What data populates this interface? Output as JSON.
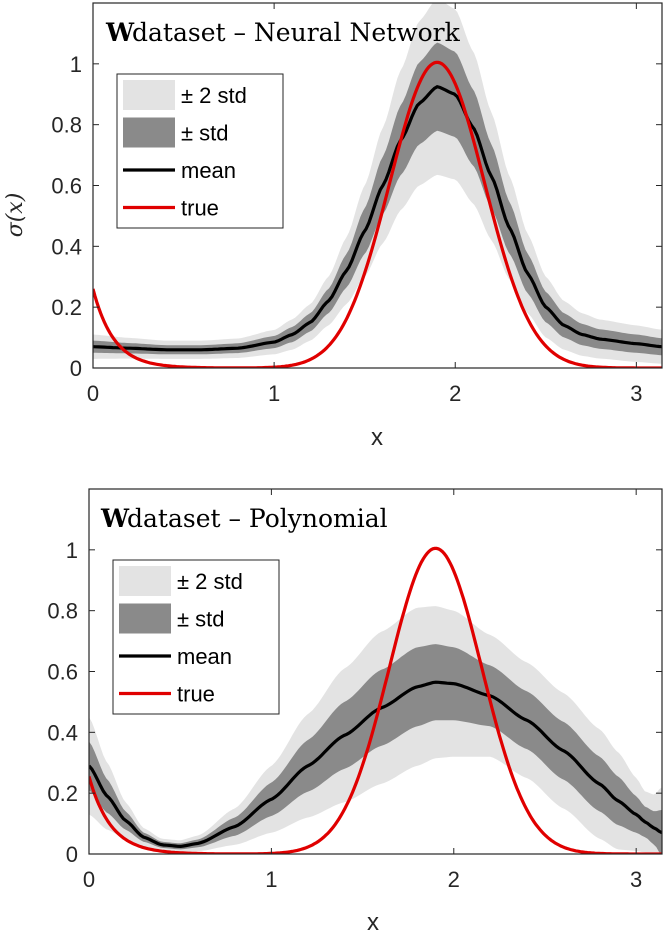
{
  "chart_data": [
    {
      "type": "line",
      "title_bold": "W",
      "title_rest": " dataset – Neural Network",
      "xlabel": "x",
      "ylabel": "σ(x)",
      "xlim": [
        0,
        3.1416
      ],
      "ylim": [
        0,
        1.2
      ],
      "xticks": [
        0,
        1,
        2,
        3
      ],
      "yticks": [
        0,
        0.2,
        0.4,
        0.6,
        0.8,
        1
      ],
      "xtick_labels": [
        "0",
        "1",
        "2",
        "3"
      ],
      "ytick_labels": [
        "0",
        "0.2",
        "0.4",
        "0.6",
        "0.8",
        "1"
      ],
      "legend": {
        "position": "upper-left",
        "entries": [
          {
            "label": "± 2 std",
            "kind": "band2"
          },
          {
            "label": "± std",
            "kind": "band1"
          },
          {
            "label": "mean",
            "kind": "mean"
          },
          {
            "label": "true",
            "kind": "true"
          }
        ]
      },
      "colors": {
        "band2": "#e3e3e3",
        "band1": "#8a8a8a",
        "mean": "#000000",
        "true": "#e00000"
      },
      "model": {
        "x": [
          0,
          0.2,
          0.4,
          0.6,
          0.8,
          1.0,
          1.1,
          1.2,
          1.3,
          1.4,
          1.5,
          1.6,
          1.7,
          1.8,
          1.9,
          2.0,
          2.1,
          2.2,
          2.3,
          2.4,
          2.5,
          2.6,
          2.7,
          2.8,
          3.0,
          3.14
        ],
        "mean": [
          0.07,
          0.065,
          0.06,
          0.06,
          0.065,
          0.085,
          0.11,
          0.15,
          0.22,
          0.32,
          0.45,
          0.6,
          0.75,
          0.87,
          0.925,
          0.9,
          0.79,
          0.63,
          0.46,
          0.31,
          0.2,
          0.14,
          0.11,
          0.095,
          0.08,
          0.07
        ],
        "std": [
          0.02,
          0.017,
          0.015,
          0.015,
          0.016,
          0.02,
          0.025,
          0.03,
          0.04,
          0.055,
          0.075,
          0.095,
          0.115,
          0.135,
          0.145,
          0.14,
          0.125,
          0.105,
          0.085,
          0.065,
          0.05,
          0.04,
          0.035,
          0.032,
          0.03,
          0.028
        ]
      },
      "truth": {
        "kind": "nn",
        "note": "true sigma(x)"
      }
    },
    {
      "type": "line",
      "title_bold": "W",
      "title_rest": " dataset – Polynomial",
      "xlabel": "x",
      "ylabel": "",
      "xlim": [
        0,
        3.1416
      ],
      "ylim": [
        0,
        1.2
      ],
      "xticks": [
        0,
        1,
        2,
        3
      ],
      "yticks": [
        0,
        0.2,
        0.4,
        0.6,
        0.8,
        1
      ],
      "xtick_labels": [
        "0",
        "1",
        "2",
        "3"
      ],
      "ytick_labels": [
        "0",
        "0.2",
        "0.4",
        "0.6",
        "0.8",
        "1"
      ],
      "legend": {
        "position": "upper-left",
        "entries": [
          {
            "label": "± 2 std",
            "kind": "band2"
          },
          {
            "label": "± std",
            "kind": "band1"
          },
          {
            "label": "mean",
            "kind": "mean"
          },
          {
            "label": "true",
            "kind": "true"
          }
        ]
      },
      "colors": {
        "band2": "#e3e3e3",
        "band1": "#8a8a8a",
        "mean": "#000000",
        "true": "#e00000"
      },
      "model": {
        "x": [
          0,
          0.1,
          0.2,
          0.3,
          0.4,
          0.5,
          0.6,
          0.8,
          1.0,
          1.2,
          1.4,
          1.6,
          1.8,
          1.9,
          2.0,
          2.2,
          2.4,
          2.6,
          2.8,
          2.9,
          3.0,
          3.05,
          3.1,
          3.14
        ],
        "mean": [
          0.29,
          0.19,
          0.11,
          0.055,
          0.03,
          0.025,
          0.035,
          0.09,
          0.18,
          0.29,
          0.39,
          0.48,
          0.55,
          0.565,
          0.56,
          0.52,
          0.44,
          0.34,
          0.23,
          0.175,
          0.13,
          0.105,
          0.085,
          0.07
        ],
        "std": [
          0.08,
          0.055,
          0.03,
          0.015,
          0.01,
          0.01,
          0.013,
          0.03,
          0.055,
          0.085,
          0.11,
          0.125,
          0.13,
          0.125,
          0.12,
          0.1,
          0.095,
          0.095,
          0.09,
          0.08,
          0.06,
          0.05,
          0.055,
          0.075
        ]
      },
      "truth": {
        "kind": "poly",
        "note": "true sigma(x)"
      }
    }
  ]
}
